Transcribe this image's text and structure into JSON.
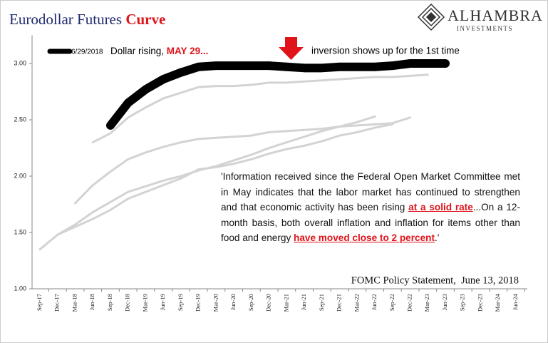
{
  "chart_data": {
    "type": "line",
    "title": "Eurodollar Futures",
    "title_emphasis": "Curve",
    "logo": {
      "name": "ALHAMBRA",
      "tagline": "INVESTMENTS"
    },
    "annotations": {
      "legend_note": "Dollar rising,",
      "legend_note_emphasis": "MAY 29...",
      "arrow_note": "inversion shows up for the 1st time",
      "quote": [
        "'Information received since the Federal Open Market Committee met in May indicates that the labor market has continued to strengthen and that economic activity has been rising ",
        "at a solid rate",
        "...On a 12-month basis, both overall inflation and inflation for items other than food and energy ",
        "have moved close to 2 percent",
        ".'"
      ],
      "source": "FOMC Policy Statement,  June 13, 2018"
    },
    "categories": [
      "Sep-17",
      "Dec-17",
      "Mar-18",
      "Jun-18",
      "Sep-18",
      "Dec-18",
      "Mar-19",
      "Jun-19",
      "Sep-19",
      "Dec-19",
      "Mar-20",
      "Jun-20",
      "Sep-20",
      "Dec-20",
      "Mar-21",
      "Jun-21",
      "Sep-21",
      "Dec-21",
      "Mar-22",
      "Jun-22",
      "Sep-22",
      "Dec-22",
      "Mar-23",
      "Jun-23",
      "Sep-23",
      "Dec-23",
      "Mar-24",
      "Jun-24"
    ],
    "series": [
      {
        "name": "6/29/2018",
        "color": "#000000",
        "values": [
          null,
          null,
          null,
          null,
          2.45,
          2.65,
          2.77,
          2.86,
          2.92,
          2.97,
          2.98,
          2.98,
          2.98,
          2.98,
          2.97,
          2.96,
          2.96,
          2.97,
          2.97,
          2.97,
          2.98,
          3.0,
          3.0,
          3.0,
          null,
          null,
          null,
          null
        ]
      },
      {
        "color": "#d3d3d3",
        "values": [
          null,
          null,
          null,
          2.3,
          2.38,
          2.52,
          2.61,
          2.69,
          2.74,
          2.79,
          2.8,
          2.8,
          2.81,
          2.83,
          2.83,
          2.84,
          2.85,
          2.86,
          2.87,
          2.88,
          2.88,
          2.89,
          2.9,
          null,
          null,
          null,
          null,
          null
        ]
      },
      {
        "color": "#d3d3d3",
        "values": [
          null,
          null,
          1.76,
          1.92,
          2.04,
          2.15,
          2.21,
          2.26,
          2.3,
          2.33,
          2.34,
          2.35,
          2.36,
          2.39,
          2.4,
          2.41,
          2.42,
          2.44,
          2.45,
          2.46,
          2.47,
          2.52,
          null,
          null,
          null,
          null,
          null,
          null
        ]
      },
      {
        "color": "#d3d3d3",
        "values": [
          1.35,
          1.48,
          1.57,
          1.68,
          1.77,
          1.86,
          1.91,
          1.96,
          2.0,
          2.05,
          2.09,
          2.14,
          2.19,
          2.25,
          2.3,
          2.35,
          2.4,
          2.44,
          2.48,
          2.53,
          null,
          null,
          null,
          null,
          null,
          null,
          null,
          null
        ]
      },
      {
        "color": "#d3d3d3",
        "values": [
          null,
          1.48,
          1.55,
          1.62,
          1.7,
          1.8,
          1.86,
          1.92,
          1.98,
          2.06,
          2.08,
          2.11,
          2.15,
          2.2,
          2.24,
          2.27,
          2.31,
          2.36,
          2.39,
          2.43,
          2.46,
          null,
          null,
          null,
          null,
          null,
          null,
          null
        ]
      }
    ],
    "ylim": [
      1.0,
      3.25
    ],
    "yticks": [
      {
        "value": 1.0,
        "label": "1.00"
      },
      {
        "value": 1.5,
        "label": "1.50"
      },
      {
        "value": 2.0,
        "label": "2.00"
      },
      {
        "value": 2.5,
        "label": "2.50"
      },
      {
        "value": 3.0,
        "label": "3.00"
      }
    ],
    "grid": false
  }
}
